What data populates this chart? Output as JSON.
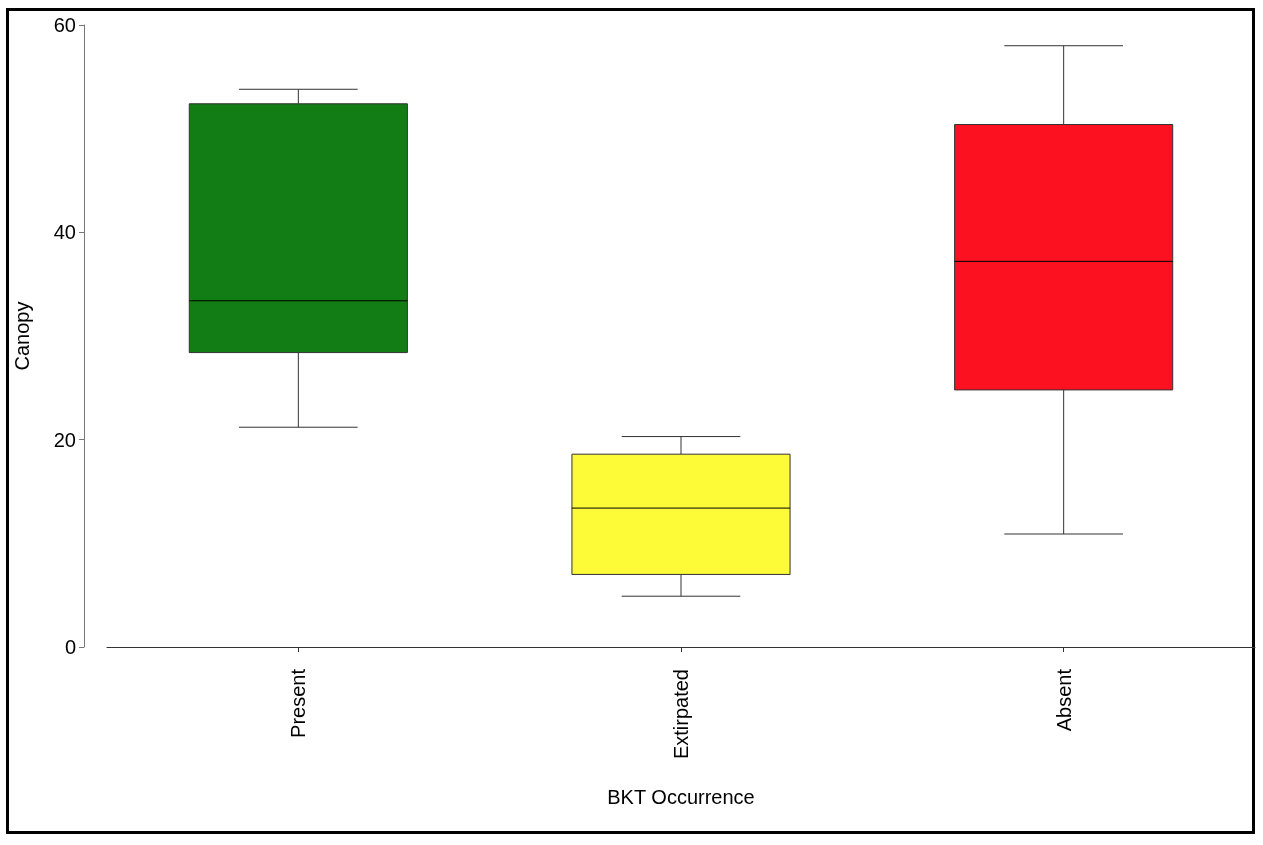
{
  "chart_data": {
    "type": "box",
    "xlabel": "BKT Occurrence",
    "ylabel": "Canopy",
    "categories": [
      "Present",
      "Extirpated",
      "Absent"
    ],
    "colors": [
      "#127d14",
      "#fdfa37",
      "#fc1120"
    ],
    "boxes": [
      {
        "low": 21.2,
        "q1": 28.4,
        "median": 33.4,
        "q3": 52.4,
        "high": 53.8
      },
      {
        "low": 4.9,
        "q1": 7.0,
        "median": 13.4,
        "q3": 18.6,
        "high": 20.3
      },
      {
        "low": 10.9,
        "q1": 24.8,
        "median": 37.2,
        "q3": 50.4,
        "high": 58.0
      }
    ],
    "ylim": [
      0,
      60
    ],
    "yticks": [
      0,
      20,
      40,
      60
    ],
    "grid": false
  }
}
